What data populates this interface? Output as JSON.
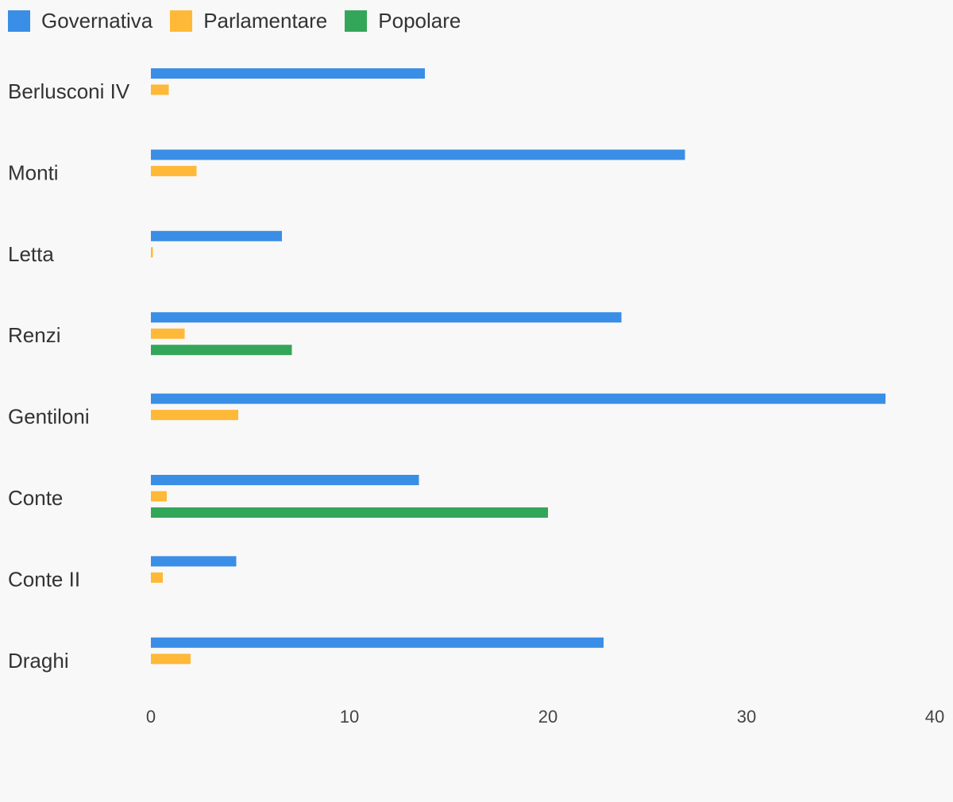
{
  "chart_data": {
    "type": "bar",
    "orientation": "horizontal",
    "categories": [
      "Berlusconi IV",
      "Monti",
      "Letta",
      "Renzi",
      "Gentiloni",
      "Conte",
      "Conte II",
      "Draghi"
    ],
    "series": [
      {
        "name": "Governativa",
        "color": "#3a8ee6",
        "values": [
          13.8,
          26.9,
          6.6,
          23.7,
          37.0,
          13.5,
          4.3,
          22.8
        ]
      },
      {
        "name": "Parlamentare",
        "color": "#ffb938",
        "values": [
          0.9,
          2.3,
          0.1,
          1.7,
          4.4,
          0.8,
          0.6,
          2.0
        ]
      },
      {
        "name": "Popolare",
        "color": "#33a65a",
        "values": [
          0,
          0,
          0,
          7.1,
          0,
          20.0,
          0,
          0
        ]
      }
    ],
    "xlim": [
      0,
      40
    ],
    "xticks": [
      "0",
      "10",
      "20",
      "30",
      "40"
    ],
    "legend_position": "top-left",
    "grid": false,
    "title": "",
    "xlabel": "",
    "ylabel": ""
  }
}
